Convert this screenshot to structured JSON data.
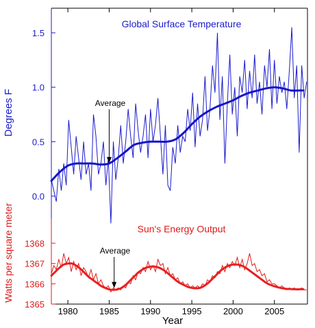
{
  "chart_data": [
    {
      "type": "line",
      "title": "Global Surface Temperature",
      "ylabel": "Degrees F",
      "xlabel": "Year",
      "color": "#1a1acc",
      "xlim": [
        1978,
        2009
      ],
      "ylim": [
        -0.3,
        1.7
      ],
      "yticks": [
        0.0,
        0.5,
        1.0,
        1.5
      ],
      "ytick_labels": [
        "0.0",
        "0.5",
        "1.0",
        "1.5"
      ],
      "annotation": "Average",
      "annotation_x": 1985,
      "series": [
        {
          "kind": "monthly",
          "x": [
            1978.0,
            1978.3,
            1978.6,
            1978.9,
            1979.2,
            1979.5,
            1979.8,
            1980.1,
            1980.4,
            1980.7,
            1981.0,
            1981.3,
            1981.6,
            1981.9,
            1982.2,
            1982.5,
            1982.8,
            1983.1,
            1983.4,
            1983.7,
            1984.0,
            1984.3,
            1984.6,
            1984.9,
            1985.2,
            1985.5,
            1985.8,
            1986.1,
            1986.4,
            1986.7,
            1987.0,
            1987.3,
            1987.6,
            1987.9,
            1988.2,
            1988.5,
            1988.8,
            1989.1,
            1989.4,
            1989.7,
            1990.0,
            1990.3,
            1990.6,
            1990.9,
            1991.2,
            1991.5,
            1991.8,
            1992.1,
            1992.4,
            1992.7,
            1993.0,
            1993.3,
            1993.6,
            1993.9,
            1994.2,
            1994.5,
            1994.8,
            1995.1,
            1995.4,
            1995.7,
            1996.0,
            1996.3,
            1996.6,
            1996.9,
            1997.2,
            1997.5,
            1997.8,
            1998.1,
            1998.4,
            1998.7,
            1999.0,
            1999.3,
            1999.6,
            1999.9,
            2000.2,
            2000.5,
            2000.8,
            2001.1,
            2001.4,
            2001.7,
            2002.0,
            2002.3,
            2002.6,
            2002.9,
            2003.2,
            2003.5,
            2003.8,
            2004.1,
            2004.4,
            2004.7,
            2005.0,
            2005.3,
            2005.6,
            2005.9,
            2006.2,
            2006.5,
            2006.8,
            2007.1,
            2007.4,
            2007.7,
            2008.0,
            2008.3,
            2008.6,
            2008.9
          ],
          "y": [
            0.15,
            0.05,
            -0.05,
            0.25,
            0.05,
            0.3,
            0.1,
            0.7,
            0.45,
            0.2,
            0.55,
            0.35,
            0.15,
            0.5,
            0.2,
            0.3,
            0.05,
            0.75,
            0.55,
            0.2,
            0.3,
            0.5,
            0.1,
            0.35,
            -0.25,
            0.5,
            0.15,
            0.35,
            0.65,
            0.3,
            0.5,
            0.8,
            0.55,
            0.35,
            0.85,
            0.6,
            0.4,
            0.55,
            0.75,
            0.35,
            0.8,
            0.5,
            0.65,
            0.9,
            0.55,
            0.2,
            0.65,
            0.1,
            0.05,
            0.45,
            0.3,
            0.65,
            0.4,
            0.55,
            0.5,
            0.8,
            0.6,
            0.95,
            0.45,
            0.85,
            0.55,
            0.7,
            1.1,
            0.6,
            0.8,
            1.2,
            0.95,
            1.5,
            0.7,
            1.1,
            0.3,
            0.85,
            1.3,
            0.75,
            1.0,
            0.55,
            1.1,
            0.95,
            1.25,
            0.8,
            1.15,
            0.9,
            1.3,
            0.85,
            1.05,
            0.75,
            1.2,
            1.0,
            1.35,
            0.8,
            1.25,
            0.85,
            1.1,
            0.95,
            1.05,
            0.8,
            1.15,
            1.55,
            0.9,
            1.2,
            0.4,
            1.2,
            0.9,
            1.05
          ]
        },
        {
          "kind": "average",
          "x": [
            1978,
            1979,
            1980,
            1981,
            1982,
            1983,
            1984,
            1985,
            1986,
            1987,
            1988,
            1989,
            1990,
            1991,
            1992,
            1993,
            1994,
            1995,
            1996,
            1997,
            1998,
            1999,
            2000,
            2001,
            2002,
            2003,
            2004,
            2005,
            2006,
            2007,
            2008,
            2008.5
          ],
          "y": [
            0.14,
            0.22,
            0.28,
            0.3,
            0.3,
            0.3,
            0.29,
            0.3,
            0.35,
            0.41,
            0.47,
            0.49,
            0.5,
            0.5,
            0.5,
            0.52,
            0.58,
            0.66,
            0.73,
            0.78,
            0.82,
            0.85,
            0.88,
            0.92,
            0.95,
            0.97,
            0.99,
            1.0,
            0.99,
            0.97,
            0.97,
            0.97
          ]
        }
      ]
    },
    {
      "type": "line",
      "title": "Sun's Energy Output",
      "ylabel": "Watts per square meter",
      "xlabel": "Year",
      "color": "#e01818",
      "xlim": [
        1978,
        2009
      ],
      "ylim": [
        1365,
        1368
      ],
      "yticks": [
        1365,
        1366,
        1367,
        1368
      ],
      "ytick_labels": [
        "1365",
        "1366",
        "1367",
        "1368"
      ],
      "xticks": [
        1980,
        1985,
        1990,
        1995,
        2000,
        2005
      ],
      "xtick_labels": [
        "1980",
        "1985",
        "1990",
        "1995",
        "2000",
        "2005"
      ],
      "annotation": "Average",
      "annotation_x": 1985.6,
      "series": [
        {
          "kind": "daily",
          "x": [
            1978.0,
            1978.3,
            1978.6,
            1978.9,
            1979.2,
            1979.5,
            1979.8,
            1980.1,
            1980.4,
            1980.7,
            1981.0,
            1981.3,
            1981.6,
            1981.9,
            1982.2,
            1982.5,
            1982.8,
            1983.1,
            1983.4,
            1983.7,
            1984.0,
            1984.3,
            1984.6,
            1984.9,
            1985.2,
            1985.5,
            1985.8,
            1986.1,
            1986.4,
            1986.7,
            1987.0,
            1987.3,
            1987.6,
            1987.9,
            1988.2,
            1988.5,
            1988.8,
            1989.1,
            1989.4,
            1989.7,
            1990.0,
            1990.3,
            1990.6,
            1990.9,
            1991.2,
            1991.5,
            1991.8,
            1992.1,
            1992.4,
            1992.7,
            1993.0,
            1993.3,
            1993.6,
            1993.9,
            1994.2,
            1994.5,
            1994.8,
            1995.1,
            1995.4,
            1995.7,
            1996.0,
            1996.3,
            1996.6,
            1996.9,
            1997.2,
            1997.5,
            1997.8,
            1998.1,
            1998.4,
            1998.7,
            1999.0,
            1999.3,
            1999.6,
            1999.9,
            2000.2,
            2000.5,
            2000.8,
            2001.1,
            2001.4,
            2001.7,
            2002.0,
            2002.3,
            2002.6,
            2002.9,
            2003.2,
            2003.5,
            2003.8,
            2004.1,
            2004.4,
            2004.7,
            2005.0,
            2005.3,
            2005.6,
            2005.9,
            2006.2,
            2006.5,
            2006.8,
            2007.1,
            2007.4,
            2007.7,
            2008.0,
            2008.3,
            2008.6,
            2008.9
          ],
          "y": [
            1366.5,
            1366.9,
            1366.7,
            1367.2,
            1366.8,
            1367.5,
            1367.0,
            1367.3,
            1366.6,
            1367.1,
            1366.7,
            1367.0,
            1366.4,
            1366.8,
            1366.6,
            1366.3,
            1366.7,
            1366.2,
            1366.5,
            1366.0,
            1366.2,
            1365.9,
            1365.8,
            1365.9,
            1365.6,
            1365.8,
            1365.7,
            1365.8,
            1365.7,
            1365.9,
            1365.8,
            1366.1,
            1366.0,
            1366.4,
            1366.2,
            1366.6,
            1366.5,
            1366.8,
            1366.6,
            1367.1,
            1366.7,
            1366.9,
            1366.6,
            1367.2,
            1366.9,
            1367.0,
            1366.5,
            1366.8,
            1366.4,
            1366.5,
            1366.2,
            1366.3,
            1366.0,
            1366.1,
            1365.9,
            1366.0,
            1365.8,
            1365.9,
            1365.8,
            1365.9,
            1365.8,
            1366.0,
            1365.9,
            1366.2,
            1366.1,
            1366.4,
            1366.3,
            1366.6,
            1366.5,
            1366.9,
            1366.6,
            1367.0,
            1366.8,
            1367.1,
            1366.9,
            1367.3,
            1366.8,
            1367.2,
            1366.7,
            1367.0,
            1367.5,
            1366.9,
            1367.0,
            1366.6,
            1366.7,
            1366.4,
            1366.5,
            1366.1,
            1366.2,
            1366.0,
            1366.0,
            1365.9,
            1365.8,
            1365.9,
            1365.8,
            1365.7,
            1365.8,
            1365.7,
            1365.8,
            1365.7,
            1365.7,
            1365.8,
            1365.7,
            1365.7
          ]
        },
        {
          "kind": "average",
          "x": [
            1978,
            1978.5,
            1979,
            1979.5,
            1980,
            1980.5,
            1981,
            1981.5,
            1982,
            1982.5,
            1983,
            1983.5,
            1984,
            1984.5,
            1985,
            1985.5,
            1986,
            1986.5,
            1987,
            1987.5,
            1988,
            1988.5,
            1989,
            1989.5,
            1990,
            1990.5,
            1991,
            1991.5,
            1992,
            1992.5,
            1993,
            1993.5,
            1994,
            1994.5,
            1995,
            1995.5,
            1996,
            1996.5,
            1997,
            1997.5,
            1998,
            1998.5,
            1999,
            1999.5,
            2000,
            2000.5,
            2001,
            2001.5,
            2002,
            2002.5,
            2003,
            2003.5,
            2004,
            2004.5,
            2005,
            2005.5,
            2006,
            2006.5,
            2007,
            2007.5,
            2008,
            2008.5
          ],
          "y": [
            1366.4,
            1366.6,
            1366.8,
            1366.95,
            1367.0,
            1367.0,
            1366.9,
            1366.75,
            1366.55,
            1366.35,
            1366.2,
            1366.05,
            1365.9,
            1365.8,
            1365.72,
            1365.7,
            1365.72,
            1365.8,
            1365.95,
            1366.15,
            1366.35,
            1366.55,
            1366.7,
            1366.8,
            1366.85,
            1366.85,
            1366.8,
            1366.7,
            1366.55,
            1366.38,
            1366.2,
            1366.05,
            1365.95,
            1365.85,
            1365.8,
            1365.78,
            1365.8,
            1365.9,
            1366.05,
            1366.25,
            1366.45,
            1366.65,
            1366.8,
            1366.9,
            1366.95,
            1366.95,
            1366.9,
            1366.8,
            1366.65,
            1366.5,
            1366.35,
            1366.2,
            1366.05,
            1365.95,
            1365.88,
            1365.82,
            1365.78,
            1365.75,
            1365.74,
            1365.73,
            1365.73,
            1365.73
          ]
        }
      ]
    }
  ]
}
